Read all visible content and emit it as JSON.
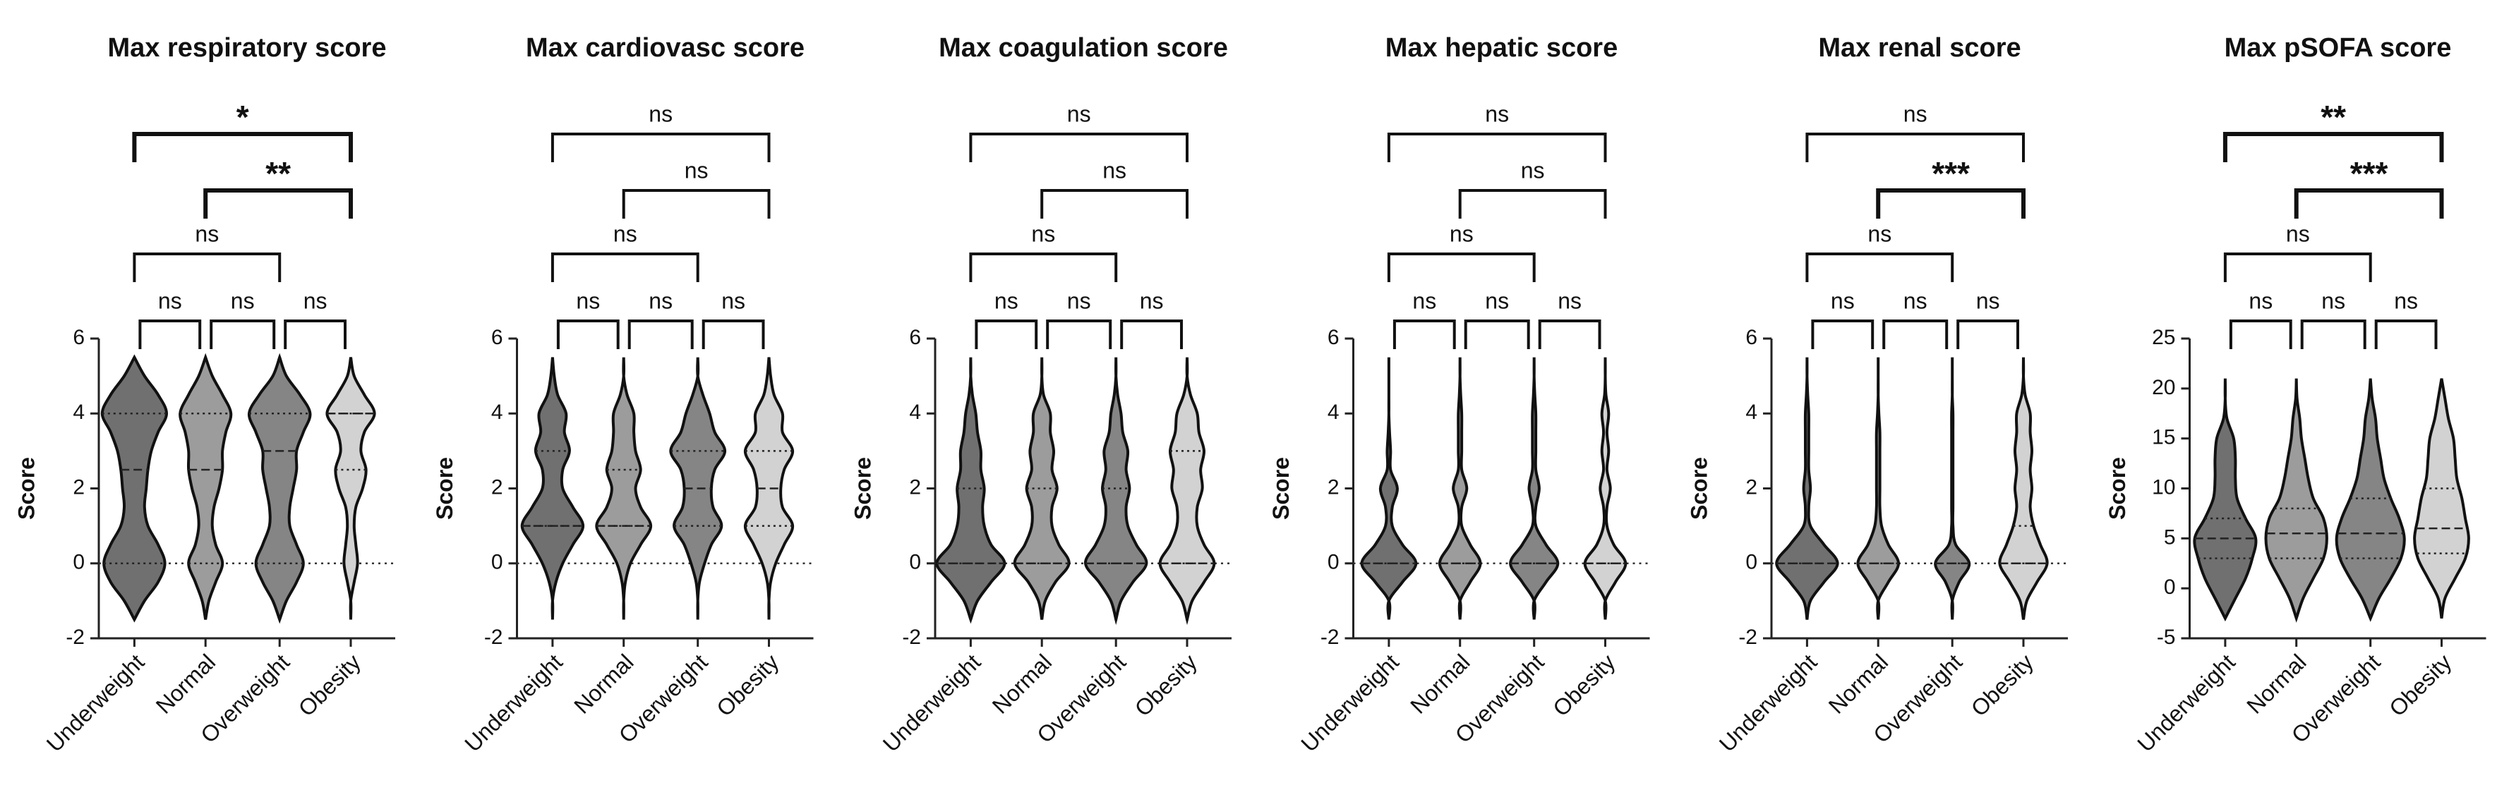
{
  "chart_data": [
    {
      "type": "violin",
      "title": "Max respiratory score",
      "y_label": "Score",
      "categories": [
        "Underweight",
        "Normal",
        "Overweight",
        "Obesity"
      ],
      "ylim": [
        -2,
        6
      ],
      "yticks": [
        -2,
        0,
        2,
        4,
        6
      ],
      "zero_line": true,
      "density_levels": [
        -1.5,
        -1,
        -0.5,
        0,
        0.5,
        1,
        1.5,
        2,
        2.5,
        3,
        3.5,
        4,
        4.5,
        5,
        5.5
      ],
      "series": [
        {
          "name": "Underweight",
          "color": "#707070",
          "density": [
            0,
            0.3,
            0.7,
            0.9,
            0.7,
            0.4,
            0.3,
            0.35,
            0.4,
            0.5,
            0.7,
            0.95,
            0.7,
            0.3,
            0
          ],
          "median": 2.5,
          "q1": 0,
          "q3": 4
        },
        {
          "name": "Normal",
          "color": "#9c9c9c",
          "density": [
            0,
            0.1,
            0.3,
            0.5,
            0.3,
            0.2,
            0.25,
            0.4,
            0.5,
            0.5,
            0.6,
            0.75,
            0.5,
            0.2,
            0
          ],
          "median": 2.5,
          "q1": 0,
          "q3": 4
        },
        {
          "name": "Overweight",
          "color": "#858585",
          "density": [
            0,
            0.2,
            0.5,
            0.7,
            0.5,
            0.3,
            0.3,
            0.4,
            0.5,
            0.5,
            0.7,
            0.9,
            0.6,
            0.2,
            0
          ],
          "median": 3,
          "q1": 0,
          "q3": 4
        },
        {
          "name": "Obesity",
          "color": "#d2d2d2",
          "density": [
            0,
            0,
            0.1,
            0.2,
            0.15,
            0.1,
            0.15,
            0.35,
            0.45,
            0.3,
            0.4,
            0.7,
            0.4,
            0.1,
            0
          ],
          "median": 4,
          "q1": 2.5,
          "q3": 4
        }
      ],
      "comparisons": [
        {
          "from": "Underweight",
          "to": "Normal",
          "label": "ns"
        },
        {
          "from": "Normal",
          "to": "Overweight",
          "label": "ns"
        },
        {
          "from": "Overweight",
          "to": "Obesity",
          "label": "ns"
        },
        {
          "from": "Underweight",
          "to": "Overweight",
          "label": "ns"
        },
        {
          "from": "Normal",
          "to": "Obesity",
          "label": "**"
        },
        {
          "from": "Underweight",
          "to": "Obesity",
          "label": "*"
        }
      ]
    },
    {
      "type": "violin",
      "title": "Max cardiovasc score",
      "y_label": "Score",
      "categories": [
        "Underweight",
        "Normal",
        "Overweight",
        "Obesity"
      ],
      "ylim": [
        -2,
        6
      ],
      "yticks": [
        -2,
        0,
        2,
        4,
        6
      ],
      "zero_line": true,
      "density_levels": [
        -1.5,
        -1,
        -0.5,
        0,
        0.5,
        1,
        1.5,
        2,
        2.5,
        3,
        3.5,
        4,
        4.5,
        5,
        5.5
      ],
      "series": [
        {
          "name": "Underweight",
          "color": "#707070",
          "density": [
            0,
            0,
            0.1,
            0.3,
            0.6,
            0.9,
            0.6,
            0.3,
            0.3,
            0.5,
            0.35,
            0.4,
            0.15,
            0.05,
            0
          ],
          "median": 1,
          "q1": 1,
          "q3": 3
        },
        {
          "name": "Normal",
          "color": "#9c9c9c",
          "density": [
            0,
            0,
            0.05,
            0.2,
            0.5,
            0.8,
            0.5,
            0.35,
            0.5,
            0.35,
            0.3,
            0.3,
            0.1,
            0,
            0
          ],
          "median": 1,
          "q1": 1,
          "q3": 2.5
        },
        {
          "name": "Overweight",
          "color": "#858585",
          "density": [
            0,
            0,
            0.05,
            0.2,
            0.4,
            0.7,
            0.45,
            0.4,
            0.5,
            0.8,
            0.5,
            0.35,
            0.15,
            0,
            0
          ],
          "median": 2,
          "q1": 1,
          "q3": 3
        },
        {
          "name": "Obesity",
          "color": "#d2d2d2",
          "density": [
            0,
            0,
            0.05,
            0.2,
            0.45,
            0.7,
            0.4,
            0.35,
            0.45,
            0.7,
            0.4,
            0.4,
            0.15,
            0.05,
            0
          ],
          "median": 2,
          "q1": 1,
          "q3": 3
        }
      ],
      "comparisons": [
        {
          "from": "Underweight",
          "to": "Normal",
          "label": "ns"
        },
        {
          "from": "Normal",
          "to": "Overweight",
          "label": "ns"
        },
        {
          "from": "Overweight",
          "to": "Obesity",
          "label": "ns"
        },
        {
          "from": "Underweight",
          "to": "Overweight",
          "label": "ns"
        },
        {
          "from": "Normal",
          "to": "Obesity",
          "label": "ns"
        },
        {
          "from": "Underweight",
          "to": "Obesity",
          "label": "ns"
        }
      ]
    },
    {
      "type": "violin",
      "title": "Max coagulation score",
      "y_label": "Score",
      "categories": [
        "Underweight",
        "Normal",
        "Overweight",
        "Obesity"
      ],
      "ylim": [
        -2,
        6
      ],
      "yticks": [
        -2,
        0,
        2,
        4,
        6
      ],
      "zero_line": true,
      "density_levels": [
        -1.5,
        -1,
        -0.5,
        0,
        0.5,
        1,
        1.5,
        2,
        2.5,
        3,
        3.5,
        4,
        4.5,
        5,
        5.5
      ],
      "series": [
        {
          "name": "Underweight",
          "color": "#707070",
          "density": [
            0,
            0.2,
            0.6,
            1,
            0.6,
            0.4,
            0.35,
            0.4,
            0.3,
            0.3,
            0.2,
            0.15,
            0.05,
            0,
            0
          ],
          "median": 0,
          "q1": 0,
          "q3": 2
        },
        {
          "name": "Normal",
          "color": "#9c9c9c",
          "density": [
            0,
            0.1,
            0.4,
            0.8,
            0.5,
            0.3,
            0.3,
            0.45,
            0.3,
            0.35,
            0.25,
            0.25,
            0.05,
            0,
            0
          ],
          "median": 0,
          "q1": 0,
          "q3": 2
        },
        {
          "name": "Overweight",
          "color": "#858585",
          "density": [
            0,
            0.15,
            0.5,
            0.9,
            0.6,
            0.35,
            0.3,
            0.4,
            0.3,
            0.35,
            0.2,
            0.15,
            0.05,
            0,
            0
          ],
          "median": 0,
          "q1": 0,
          "q3": 2
        },
        {
          "name": "Obesity",
          "color": "#d2d2d2",
          "density": [
            0,
            0.15,
            0.5,
            0.8,
            0.5,
            0.3,
            0.3,
            0.45,
            0.4,
            0.5,
            0.35,
            0.3,
            0.1,
            0,
            0
          ],
          "median": 0,
          "q1": 0,
          "q3": 3
        }
      ],
      "comparisons": [
        {
          "from": "Underweight",
          "to": "Normal",
          "label": "ns"
        },
        {
          "from": "Normal",
          "to": "Overweight",
          "label": "ns"
        },
        {
          "from": "Overweight",
          "to": "Obesity",
          "label": "ns"
        },
        {
          "from": "Underweight",
          "to": "Overweight",
          "label": "ns"
        },
        {
          "from": "Normal",
          "to": "Obesity",
          "label": "ns"
        },
        {
          "from": "Underweight",
          "to": "Obesity",
          "label": "ns"
        }
      ]
    },
    {
      "type": "violin",
      "title": "Max hepatic score",
      "y_label": "Score",
      "categories": [
        "Underweight",
        "Normal",
        "Overweight",
        "Obesity"
      ],
      "ylim": [
        -2,
        6
      ],
      "yticks": [
        -2,
        0,
        2,
        4,
        6
      ],
      "zero_line": true,
      "density_levels": [
        -1.5,
        -1,
        -0.5,
        0,
        0.5,
        1,
        1.5,
        2,
        2.5,
        3,
        3.5,
        4,
        4.5,
        5,
        5.5
      ],
      "series": [
        {
          "name": "Underweight",
          "color": "#707070",
          "density": [
            0,
            0,
            0.4,
            0.8,
            0.4,
            0.1,
            0.1,
            0.25,
            0.05,
            0.05,
            0.02,
            0,
            0,
            0,
            0
          ],
          "median": 0,
          "q1": 0,
          "q3": 0
        },
        {
          "name": "Normal",
          "color": "#9c9c9c",
          "density": [
            0,
            0,
            0.3,
            0.6,
            0.3,
            0.05,
            0.05,
            0.2,
            0.05,
            0.05,
            0.05,
            0.05,
            0.02,
            0,
            0
          ],
          "median": 0,
          "q1": 0,
          "q3": 0
        },
        {
          "name": "Overweight",
          "color": "#858585",
          "density": [
            0,
            0,
            0.35,
            0.7,
            0.35,
            0.05,
            0.05,
            0.15,
            0.05,
            0.05,
            0.05,
            0.05,
            0.02,
            0,
            0
          ],
          "median": 0,
          "q1": 0,
          "q3": 0
        },
        {
          "name": "Obesity",
          "color": "#d2d2d2",
          "density": [
            0,
            0,
            0.3,
            0.6,
            0.25,
            0.05,
            0.05,
            0.15,
            0.05,
            0.1,
            0.05,
            0.1,
            0.02,
            0,
            0
          ],
          "median": 0,
          "q1": 0,
          "q3": 0
        }
      ],
      "comparisons": [
        {
          "from": "Underweight",
          "to": "Normal",
          "label": "ns"
        },
        {
          "from": "Normal",
          "to": "Overweight",
          "label": "ns"
        },
        {
          "from": "Overweight",
          "to": "Obesity",
          "label": "ns"
        },
        {
          "from": "Underweight",
          "to": "Overweight",
          "label": "ns"
        },
        {
          "from": "Normal",
          "to": "Obesity",
          "label": "ns"
        },
        {
          "from": "Underweight",
          "to": "Obesity",
          "label": "ns"
        }
      ]
    },
    {
      "type": "violin",
      "title": "Max renal score",
      "y_label": "Score",
      "categories": [
        "Underweight",
        "Normal",
        "Overweight",
        "Obesity"
      ],
      "ylim": [
        -2,
        6
      ],
      "yticks": [
        -2,
        0,
        2,
        4,
        6
      ],
      "zero_line": true,
      "density_levels": [
        -1.5,
        -1,
        -0.5,
        0,
        0.5,
        1,
        1.5,
        2,
        2.5,
        3,
        3.5,
        4,
        4.5,
        5,
        5.5
      ],
      "series": [
        {
          "name": "Underweight",
          "color": "#707070",
          "density": [
            0,
            0.1,
            0.5,
            0.9,
            0.5,
            0.1,
            0.05,
            0.1,
            0.05,
            0.05,
            0.05,
            0.05,
            0.02,
            0,
            0
          ],
          "median": 0,
          "q1": 0,
          "q3": 0
        },
        {
          "name": "Normal",
          "color": "#9c9c9c",
          "density": [
            0,
            0,
            0.3,
            0.6,
            0.3,
            0.1,
            0.05,
            0.05,
            0.05,
            0.05,
            0.05,
            0.02,
            0,
            0,
            0
          ],
          "median": 0,
          "q1": 0,
          "q3": 0
        },
        {
          "name": "Overweight",
          "color": "#858585",
          "density": [
            0,
            0,
            0.2,
            0.5,
            0.1,
            0.02,
            0.02,
            0.02,
            0.02,
            0.02,
            0.02,
            0.02,
            0,
            0,
            0
          ],
          "median": 0,
          "q1": 0,
          "q3": 0
        },
        {
          "name": "Obesity",
          "color": "#d2d2d2",
          "density": [
            0,
            0.1,
            0.4,
            0.7,
            0.5,
            0.3,
            0.2,
            0.25,
            0.2,
            0.25,
            0.2,
            0.2,
            0.05,
            0,
            0
          ],
          "median": 0,
          "q1": 0,
          "q3": 1
        }
      ],
      "comparisons": [
        {
          "from": "Underweight",
          "to": "Normal",
          "label": "ns"
        },
        {
          "from": "Normal",
          "to": "Overweight",
          "label": "ns"
        },
        {
          "from": "Overweight",
          "to": "Obesity",
          "label": "ns"
        },
        {
          "from": "Underweight",
          "to": "Overweight",
          "label": "ns"
        },
        {
          "from": "Normal",
          "to": "Obesity",
          "label": "***"
        },
        {
          "from": "Underweight",
          "to": "Obesity",
          "label": "ns"
        }
      ]
    },
    {
      "type": "violin",
      "title": "Max pSOFA score",
      "y_label": "Score",
      "categories": [
        "Underweight",
        "Normal",
        "Overweight",
        "Obesity"
      ],
      "ylim": [
        -5,
        25
      ],
      "yticks": [
        -5,
        0,
        5,
        10,
        15,
        20,
        25
      ],
      "zero_line": false,
      "density_levels": [
        -3,
        -1,
        1,
        3,
        5,
        7,
        9,
        11,
        13,
        15,
        17,
        19,
        21
      ],
      "series": [
        {
          "name": "Underweight",
          "color": "#707070",
          "density": [
            0,
            0.3,
            0.6,
            0.8,
            0.9,
            0.6,
            0.35,
            0.3,
            0.3,
            0.25,
            0.05,
            0,
            0
          ],
          "median": 5,
          "q1": 3,
          "q3": 7
        },
        {
          "name": "Normal",
          "color": "#9c9c9c",
          "density": [
            0,
            0.2,
            0.5,
            0.8,
            0.9,
            0.8,
            0.5,
            0.35,
            0.25,
            0.15,
            0.1,
            0.02,
            0
          ],
          "median": 5.5,
          "q1": 3,
          "q3": 8
        },
        {
          "name": "Overweight",
          "color": "#858585",
          "density": [
            0,
            0.25,
            0.6,
            0.9,
            1,
            0.85,
            0.6,
            0.4,
            0.3,
            0.2,
            0.15,
            0.05,
            0
          ],
          "median": 5.5,
          "q1": 3,
          "q3": 9
        },
        {
          "name": "Obesity",
          "color": "#d2d2d2",
          "density": [
            0,
            0.1,
            0.4,
            0.7,
            0.8,
            0.7,
            0.6,
            0.45,
            0.4,
            0.35,
            0.2,
            0.1,
            0
          ],
          "median": 6,
          "q1": 3.5,
          "q3": 10
        }
      ],
      "comparisons": [
        {
          "from": "Underweight",
          "to": "Normal",
          "label": "ns"
        },
        {
          "from": "Normal",
          "to": "Overweight",
          "label": "ns"
        },
        {
          "from": "Overweight",
          "to": "Obesity",
          "label": "ns"
        },
        {
          "from": "Underweight",
          "to": "Overweight",
          "label": "ns"
        },
        {
          "from": "Normal",
          "to": "Obesity",
          "label": "***"
        },
        {
          "from": "Underweight",
          "to": "Obesity",
          "label": "**"
        }
      ]
    }
  ]
}
